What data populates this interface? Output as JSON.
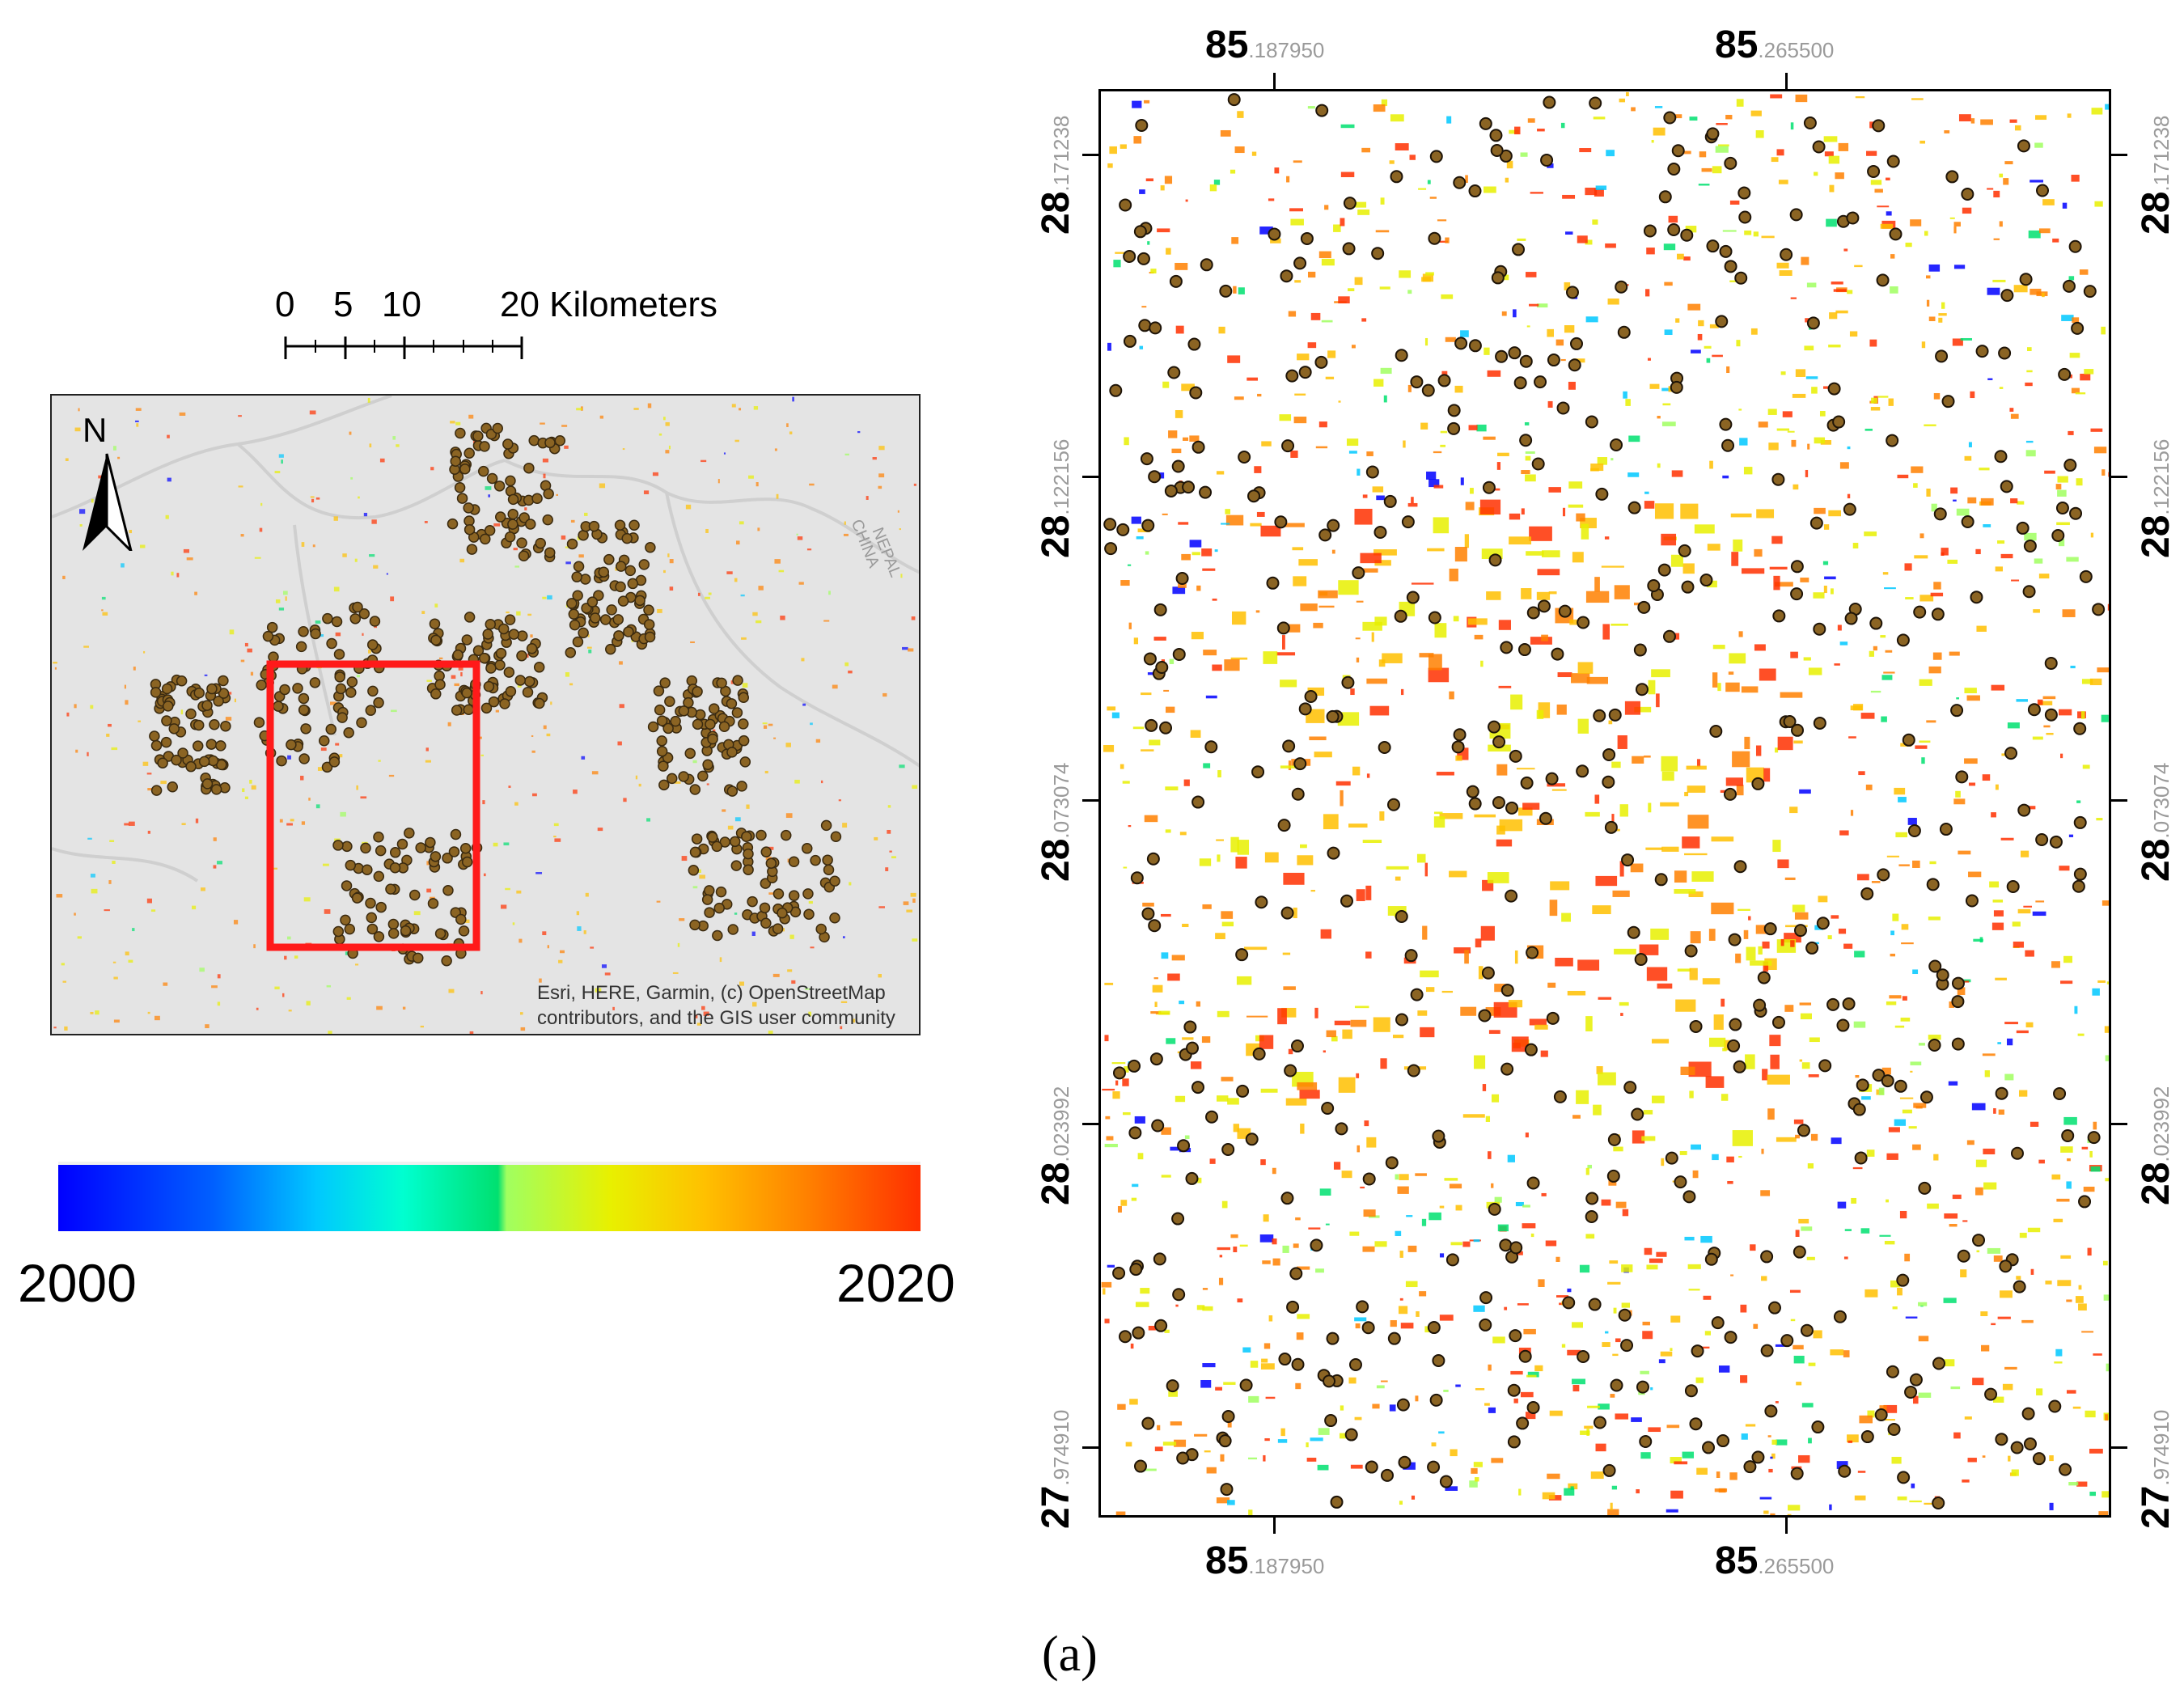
{
  "scale_bar": {
    "labels": [
      "0",
      "5",
      "10",
      "20 Kilometers"
    ]
  },
  "north_arrow": {
    "letter": "N"
  },
  "overview_map": {
    "boundary_labels": [
      "CHINA",
      "NEPAL"
    ],
    "attribution_line1": "Esri, HERE, Garmin, (c) OpenStreetMap",
    "attribution_line2": "contributors, and the GIS user community",
    "highlight_color": "#ff1a1a",
    "point_color": "#8b6423"
  },
  "legend": {
    "min_label": "2000",
    "max_label": "2020",
    "colors": [
      "#0000ff",
      "#00c8ff",
      "#00e070",
      "#a0ff60",
      "#e8f000",
      "#ffc000",
      "#ff8000",
      "#ff3000"
    ]
  },
  "detail_map": {
    "x_ticks": [
      {
        "major": "85",
        "minor": ".187950"
      },
      {
        "major": "85",
        "minor": ".265500"
      }
    ],
    "y_ticks": [
      {
        "major": "28",
        "minor": ".171238"
      },
      {
        "major": "28",
        "minor": ".122156"
      },
      {
        "major": "28",
        "minor": ".073074"
      },
      {
        "major": "28",
        "minor": ".023992"
      },
      {
        "major": "27",
        "minor": ".974910"
      }
    ]
  },
  "panel_label": "(a)"
}
